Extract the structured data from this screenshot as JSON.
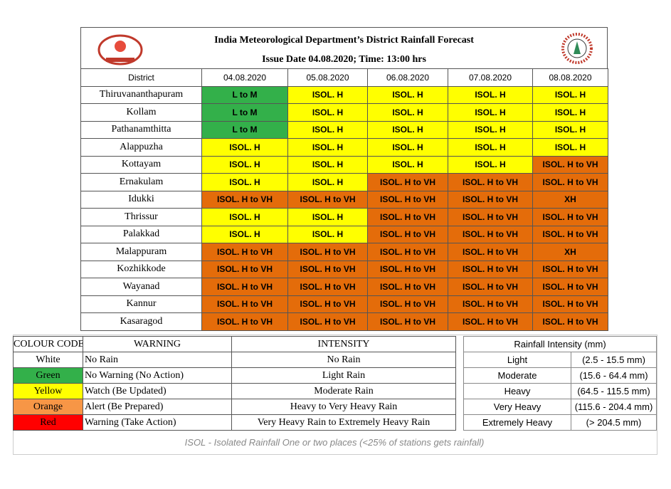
{
  "header": {
    "title": "India Meteorological Department’s District Rainfall Forecast",
    "issue": "Issue Date 04.08.2020; Time: 13:00 hrs"
  },
  "forecast": {
    "columns": [
      "District",
      "04.08.2020",
      "05.08.2020",
      "06.08.2020",
      "07.08.2020",
      "08.08.2020"
    ],
    "rows": [
      {
        "district": "Thiruvananthapuram",
        "cells": [
          "L to M",
          "ISOL. H",
          "ISOL. H",
          "ISOL. H",
          "ISOL. H"
        ],
        "colors": [
          "#33b04a",
          "#ffff00",
          "#ffff00",
          "#ffff00",
          "#ffff00"
        ]
      },
      {
        "district": "Kollam",
        "cells": [
          "L to M",
          "ISOL. H",
          "ISOL. H",
          "ISOL. H",
          "ISOL. H"
        ],
        "colors": [
          "#33b04a",
          "#ffff00",
          "#ffff00",
          "#ffff00",
          "#ffff00"
        ]
      },
      {
        "district": "Pathanamthitta",
        "cells": [
          "L to M",
          "ISOL. H",
          "ISOL. H",
          "ISOL. H",
          "ISOL. H"
        ],
        "colors": [
          "#33b04a",
          "#ffff00",
          "#ffff00",
          "#ffff00",
          "#ffff00"
        ]
      },
      {
        "district": "Alappuzha",
        "cells": [
          "ISOL. H",
          "ISOL. H",
          "ISOL. H",
          "ISOL. H",
          "ISOL. H"
        ],
        "colors": [
          "#ffff00",
          "#ffff00",
          "#ffff00",
          "#ffff00",
          "#ffff00"
        ]
      },
      {
        "district": "Kottayam",
        "cells": [
          "ISOL. H",
          "ISOL. H",
          "ISOL. H",
          "ISOL. H",
          "ISOL. H to VH"
        ],
        "colors": [
          "#ffff00",
          "#ffff00",
          "#ffff00",
          "#ffff00",
          "#e46c0a"
        ]
      },
      {
        "district": "Ernakulam",
        "cells": [
          "ISOL. H",
          "ISOL. H",
          "ISOL. H to VH",
          "ISOL. H to VH",
          "ISOL. H to VH"
        ],
        "colors": [
          "#ffff00",
          "#ffff00",
          "#e46c0a",
          "#e46c0a",
          "#e46c0a"
        ]
      },
      {
        "district": "Idukki",
        "cells": [
          "ISOL. H to VH",
          "ISOL. H to VH",
          "ISOL. H to VH",
          "ISOL. H to VH",
          "XH"
        ],
        "colors": [
          "#e46c0a",
          "#e46c0a",
          "#e46c0a",
          "#e46c0a",
          "#e46c0a"
        ]
      },
      {
        "district": "Thrissur",
        "cells": [
          "ISOL. H",
          "ISOL. H",
          "ISOL. H to VH",
          "ISOL. H to VH",
          "ISOL. H to VH"
        ],
        "colors": [
          "#ffff00",
          "#ffff00",
          "#e46c0a",
          "#e46c0a",
          "#e46c0a"
        ]
      },
      {
        "district": "Palakkad",
        "cells": [
          "ISOL. H",
          "ISOL. H",
          "ISOL. H to VH",
          "ISOL. H to VH",
          "ISOL. H to VH"
        ],
        "colors": [
          "#ffff00",
          "#ffff00",
          "#e46c0a",
          "#e46c0a",
          "#e46c0a"
        ]
      },
      {
        "district": "Malappuram",
        "cells": [
          "ISOL. H to VH",
          "ISOL. H to VH",
          "ISOL. H to VH",
          "ISOL. H to VH",
          "XH"
        ],
        "colors": [
          "#e46c0a",
          "#e46c0a",
          "#e46c0a",
          "#e46c0a",
          "#e46c0a"
        ]
      },
      {
        "district": "Kozhikkode",
        "cells": [
          "ISOL. H to VH",
          "ISOL. H to VH",
          "ISOL. H to VH",
          "ISOL. H to VH",
          "ISOL. H to VH"
        ],
        "colors": [
          "#e46c0a",
          "#e46c0a",
          "#e46c0a",
          "#e46c0a",
          "#e46c0a"
        ]
      },
      {
        "district": "Wayanad",
        "cells": [
          "ISOL. H to VH",
          "ISOL. H to VH",
          "ISOL. H to VH",
          "ISOL. H to VH",
          "ISOL. H to VH"
        ],
        "colors": [
          "#e46c0a",
          "#e46c0a",
          "#e46c0a",
          "#e46c0a",
          "#e46c0a"
        ]
      },
      {
        "district": "Kannur",
        "cells": [
          "ISOL. H to VH",
          "ISOL. H to VH",
          "ISOL. H to VH",
          "ISOL. H to VH",
          "ISOL. H to VH"
        ],
        "colors": [
          "#e46c0a",
          "#e46c0a",
          "#e46c0a",
          "#e46c0a",
          "#e46c0a"
        ]
      },
      {
        "district": "Kasaragod",
        "cells": [
          "ISOL. H to VH",
          "ISOL. H to VH",
          "ISOL. H to VH",
          "ISOL. H to VH",
          "ISOL. H to VH"
        ],
        "colors": [
          "#e46c0a",
          "#e46c0a",
          "#e46c0a",
          "#e46c0a",
          "#e46c0a"
        ]
      }
    ]
  },
  "legend": {
    "columns": [
      "COLOUR CODE",
      "WARNING",
      "INTENSITY"
    ],
    "rows": [
      {
        "code": "White",
        "color": "#ffffff",
        "warning": "No Rain",
        "intensity": "No Rain"
      },
      {
        "code": "Green",
        "color": "#33b04a",
        "warning": "No Warning (No Action)",
        "intensity": "Light Rain"
      },
      {
        "code": "Yellow",
        "color": "#ffff00",
        "warning": "Watch (Be Updated)",
        "intensity": "Moderate Rain"
      },
      {
        "code": "Orange",
        "color": "#f79646",
        "warning": "Alert (Be Prepared)",
        "intensity": "Heavy to Very Heavy Rain"
      },
      {
        "code": "Red",
        "color": "#ff0000",
        "warning": "Warning (Take Action)",
        "intensity": "Very Heavy Rain to Extremely Heavy Rain"
      }
    ]
  },
  "intensity": {
    "title": "Rainfall Intensity (mm)",
    "rows": [
      [
        "Light",
        "(2.5 - 15.5 mm)"
      ],
      [
        "Moderate",
        "(15.6 - 64.4 mm)"
      ],
      [
        "Heavy",
        "(64.5 - 115.5 mm)"
      ],
      [
        "Very Heavy",
        "(115.6 - 204.4 mm)"
      ],
      [
        "Extremely Heavy",
        "(> 204.5 mm)"
      ]
    ]
  },
  "footnote": "ISOL - Isolated Rainfall One or two places (<25% of stations gets rainfall)"
}
